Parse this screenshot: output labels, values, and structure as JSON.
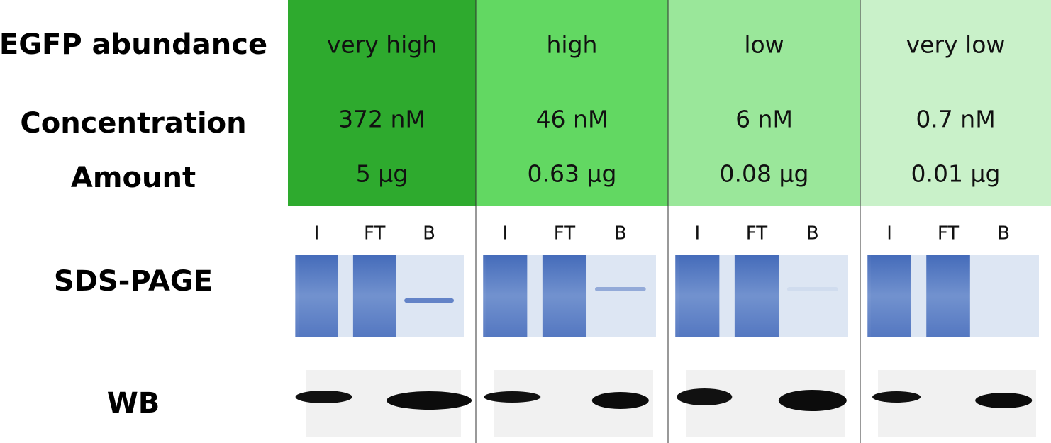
{
  "row_labels": [
    "EGFP abundance",
    "Concentration",
    "Amount",
    "SDS-PAGE",
    "WB"
  ],
  "columns": [
    {
      "abundance": "very high",
      "concentration": "372 nM",
      "amount": "5 µg",
      "lanes": [
        "I",
        "FT",
        "B"
      ]
    },
    {
      "abundance": "high",
      "concentration": "46 nM",
      "amount": "0.63 µg",
      "lanes": [
        "I",
        "FT",
        "B"
      ]
    },
    {
      "abundance": "low",
      "concentration": "6 nM",
      "amount": "0.08 µg",
      "lanes": [
        "I",
        "FT",
        "B"
      ]
    },
    {
      "abundance": "very low",
      "concentration": "0.7 nM",
      "amount": "0.01 µg",
      "lanes": [
        "I",
        "FT",
        "B"
      ]
    }
  ]
}
